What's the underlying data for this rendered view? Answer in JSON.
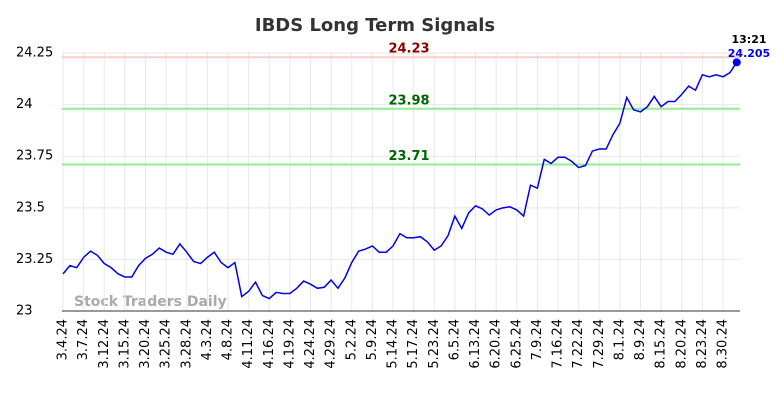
{
  "chart_data": {
    "type": "line",
    "title": "IBDS Long Term Signals",
    "watermark": "Stock Traders Daily",
    "last_time": "13:21",
    "categories": [
      "3.4.24",
      null,
      null,
      "3.7.24",
      null,
      null,
      "3.12.24",
      null,
      null,
      "3.15.24",
      null,
      null,
      "3.20.24",
      null,
      null,
      "3.25.24",
      null,
      null,
      "3.28.24",
      null,
      null,
      "4.3.24",
      null,
      null,
      "4.8.24",
      null,
      null,
      "4.11.24",
      null,
      null,
      "4.16.24",
      null,
      null,
      "4.19.24",
      null,
      null,
      "4.24.24",
      null,
      null,
      "4.29.24",
      null,
      null,
      "5.2.24",
      null,
      null,
      "5.9.24",
      null,
      null,
      "5.14.24",
      null,
      null,
      "5.17.24",
      null,
      null,
      "5.23.24",
      null,
      null,
      "6.5.24",
      null,
      null,
      "6.13.24",
      null,
      null,
      "6.20.24",
      null,
      null,
      "6.25.24",
      null,
      null,
      "7.9.24",
      null,
      null,
      "7.16.24",
      null,
      null,
      "7.22.24",
      null,
      null,
      "7.29.24",
      null,
      null,
      "8.1.24",
      null,
      null,
      "8.9.24",
      null,
      null,
      "8.15.24",
      null,
      null,
      "8.20.24",
      null,
      null,
      "8.23.24",
      null,
      null,
      "8.30.24",
      null,
      null
    ],
    "series": [
      {
        "name": "IBDS",
        "color": "#0000ee",
        "values": [
          23.18,
          23.22,
          23.21,
          23.26,
          23.29,
          23.27,
          23.23,
          23.21,
          23.18,
          23.165,
          23.165,
          23.22,
          23.255,
          23.275,
          23.305,
          23.285,
          23.275,
          23.325,
          23.285,
          23.24,
          23.23,
          23.26,
          23.285,
          23.235,
          23.21,
          23.235,
          23.07,
          23.095,
          23.14,
          23.075,
          23.06,
          23.09,
          23.085,
          23.085,
          23.11,
          23.145,
          23.13,
          23.11,
          23.115,
          23.15,
          23.11,
          23.16,
          23.235,
          23.29,
          23.3,
          23.315,
          23.285,
          23.285,
          23.315,
          23.375,
          23.355,
          23.355,
          23.36,
          23.335,
          23.295,
          23.315,
          23.365,
          23.46,
          23.4,
          23.475,
          23.51,
          23.495,
          23.465,
          23.49,
          23.5,
          23.505,
          23.49,
          23.46,
          23.61,
          23.595,
          23.735,
          23.715,
          23.745,
          23.745,
          23.725,
          23.695,
          23.705,
          23.775,
          23.785,
          23.785,
          23.855,
          23.91,
          24.035,
          23.975,
          23.965,
          23.99,
          24.04,
          23.99,
          24.015,
          24.015,
          24.05,
          24.09,
          24.07,
          24.145,
          24.135,
          24.145,
          24.135,
          24.155,
          24.205
        ]
      }
    ],
    "signals": [
      {
        "value": 24.23,
        "color": "#ffcccc",
        "text_color": "#8b0000"
      },
      {
        "value": 23.98,
        "color": "#90ee90",
        "text_color": "#006400"
      },
      {
        "value": 23.71,
        "color": "#90ee90",
        "text_color": "#006400"
      }
    ],
    "ylim": [
      23,
      24.26
    ],
    "yticks": [
      23,
      23.25,
      23.5,
      23.75,
      24,
      24.25
    ],
    "grid": true
  }
}
